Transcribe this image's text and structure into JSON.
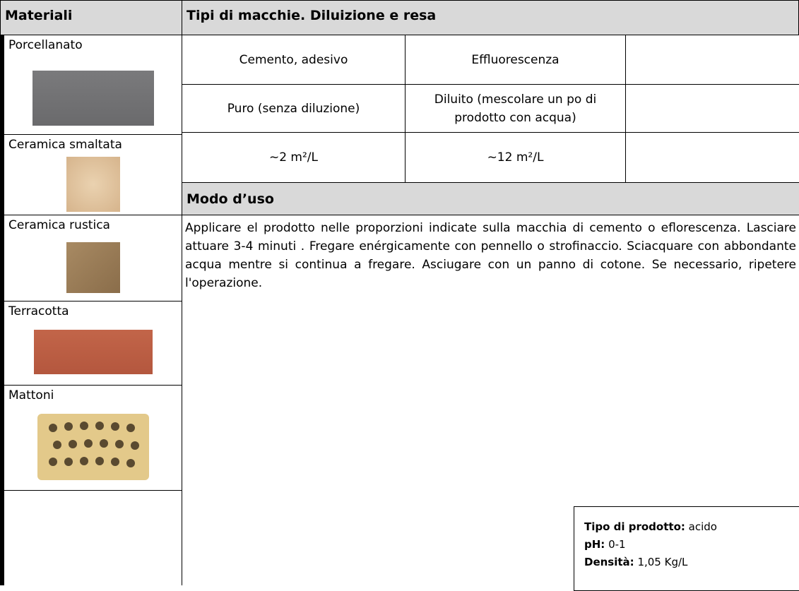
{
  "header": {
    "materials": "Materiali",
    "stains": "Tipi di macchie. Diluizione e resa"
  },
  "materials": [
    "Porcellanato",
    "Ceramica smaltata",
    "Ceramica rustica",
    "Terracotta",
    "Mattoni"
  ],
  "table": {
    "rows": [
      [
        "Cemento, adesivo",
        "Effluorescenza"
      ],
      [
        "Puro (senza diluzione)",
        "Diluito (mescolare un po di prodotto con acqua)"
      ],
      [
        "~2 m²/L",
        "~12 m²/L"
      ]
    ]
  },
  "usage": {
    "title": "Modo d’uso",
    "text": "Applicare el prodotto nelle proporzioni indicate sulla macchia di cemento o eflorescenza. Lasciare attuare 3-4 minuti . Fregare enérgicamente con pennello o strofinaccio. Sciacquare con abbondante acqua mentre si continua a fregare. Asciugare con un panno di cotone.  Se necessario, ripetere l'operazione."
  },
  "info": [
    {
      "label": "Tipo di prodotto:",
      "value": "acido"
    },
    {
      "label": "pH:",
      "value": "0-1"
    },
    {
      "label": "Densità:",
      "value": "1,05 Kg/L"
    }
  ]
}
